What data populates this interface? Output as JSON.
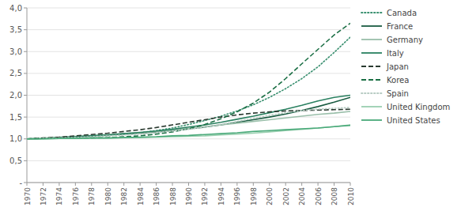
{
  "chart_data": {
    "type": "line",
    "x": [
      1970,
      1972,
      1974,
      1976,
      1978,
      1980,
      1982,
      1984,
      1986,
      1988,
      1990,
      1992,
      1994,
      1996,
      1998,
      2000,
      2002,
      2004,
      2006,
      2008,
      2010
    ],
    "series": [
      {
        "name": "Canada",
        "color": "#3a9070",
        "line_style": "dotted",
        "values": [
          1.0,
          1.01,
          1.02,
          1.03,
          1.05,
          1.07,
          1.1,
          1.14,
          1.19,
          1.25,
          1.33,
          1.42,
          1.52,
          1.64,
          1.78,
          1.95,
          2.15,
          2.38,
          2.65,
          2.98,
          3.33
        ]
      },
      {
        "name": "France",
        "color": "#1a5c42",
        "line_style": "solid",
        "values": [
          1.0,
          1.01,
          1.03,
          1.05,
          1.07,
          1.09,
          1.11,
          1.13,
          1.16,
          1.19,
          1.23,
          1.27,
          1.32,
          1.38,
          1.44,
          1.5,
          1.57,
          1.65,
          1.74,
          1.84,
          1.95
        ]
      },
      {
        "name": "Germany",
        "color": "#9abfaa",
        "line_style": "solid",
        "values": [
          1.0,
          1.02,
          1.04,
          1.06,
          1.08,
          1.1,
          1.12,
          1.14,
          1.17,
          1.2,
          1.24,
          1.28,
          1.32,
          1.36,
          1.4,
          1.44,
          1.48,
          1.52,
          1.56,
          1.59,
          1.63
        ]
      },
      {
        "name": "Italy",
        "color": "#2a8060",
        "line_style": "solid",
        "values": [
          1.0,
          1.01,
          1.03,
          1.05,
          1.07,
          1.09,
          1.12,
          1.15,
          1.18,
          1.22,
          1.27,
          1.32,
          1.38,
          1.45,
          1.52,
          1.6,
          1.68,
          1.77,
          1.87,
          1.95,
          2.0
        ]
      },
      {
        "name": "Japan",
        "color": "#2a3a30",
        "line_style": "dashed",
        "values": [
          1.0,
          1.02,
          1.04,
          1.07,
          1.1,
          1.13,
          1.17,
          1.21,
          1.26,
          1.32,
          1.38,
          1.44,
          1.5,
          1.55,
          1.59,
          1.62,
          1.64,
          1.65,
          1.66,
          1.67,
          1.68
        ]
      },
      {
        "name": "Korea",
        "color": "#1a6e44",
        "line_style": "dashed",
        "values": [
          1.0,
          1.01,
          1.01,
          1.02,
          1.02,
          1.03,
          1.05,
          1.07,
          1.11,
          1.16,
          1.23,
          1.33,
          1.46,
          1.62,
          1.82,
          2.07,
          2.38,
          2.72,
          3.05,
          3.38,
          3.65
        ]
      },
      {
        "name": "Spain",
        "color": "#b8ccc4",
        "line_style": "dotted",
        "values": [
          1.0,
          1.01,
          1.02,
          1.03,
          1.05,
          1.07,
          1.09,
          1.11,
          1.14,
          1.18,
          1.22,
          1.27,
          1.33,
          1.4,
          1.47,
          1.54,
          1.6,
          1.65,
          1.68,
          1.7,
          1.72
        ]
      },
      {
        "name": "United Kingdom",
        "color": "#9acfb0",
        "line_style": "solid",
        "values": [
          1.0,
          1.0,
          1.01,
          1.01,
          1.02,
          1.02,
          1.03,
          1.03,
          1.04,
          1.05,
          1.06,
          1.07,
          1.09,
          1.11,
          1.13,
          1.16,
          1.19,
          1.22,
          1.25,
          1.28,
          1.32
        ]
      },
      {
        "name": "United States",
        "color": "#4aaa7a",
        "line_style": "solid",
        "values": [
          1.0,
          1.0,
          1.01,
          1.01,
          1.02,
          1.02,
          1.03,
          1.04,
          1.05,
          1.07,
          1.08,
          1.1,
          1.12,
          1.14,
          1.17,
          1.19,
          1.21,
          1.23,
          1.25,
          1.28,
          1.31
        ]
      }
    ],
    "xlim": [
      1970,
      2010
    ],
    "xticks": [
      1970,
      1972,
      1974,
      1976,
      1978,
      1980,
      1982,
      1984,
      1986,
      1988,
      1990,
      1992,
      1994,
      1996,
      1998,
      2000,
      2002,
      2004,
      2006,
      2008,
      2010
    ],
    "ylim": [
      0,
      4.0
    ],
    "yticks": [
      {
        "value": 0,
        "label": "-"
      },
      {
        "value": 0.5,
        "label": "0,5"
      },
      {
        "value": 1.0,
        "label": "1,0"
      },
      {
        "value": 1.5,
        "label": "1,5"
      },
      {
        "value": 2.0,
        "label": "2,0"
      },
      {
        "value": 2.5,
        "label": "2,5"
      },
      {
        "value": 3.0,
        "label": "3,0"
      },
      {
        "value": 3.5,
        "label": "3,5"
      },
      {
        "value": 4.0,
        "label": "4,0"
      }
    ],
    "grid": "y",
    "legend": "right"
  }
}
